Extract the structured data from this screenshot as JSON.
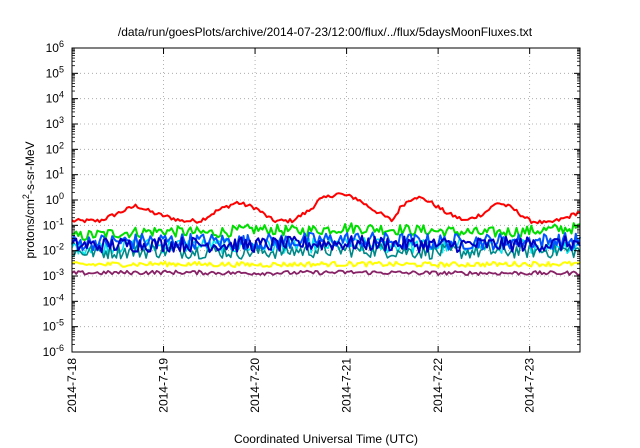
{
  "chart_data": {
    "type": "line",
    "title": "/data/run/goesPlots/archive/2014-07-23/12:00/flux/../flux/5daysMoonFluxes.txt",
    "xlabel": "Coordinated Universal Time (UTC)",
    "ylabel": {
      "pre": "protons/cm",
      "sup": "2",
      "post": "-s-sr-MeV"
    },
    "yscale": "log",
    "ylim_exponents": [
      -6,
      6
    ],
    "y_ticks": [
      {
        "base": "10",
        "exp": "6"
      },
      {
        "base": "10",
        "exp": "5"
      },
      {
        "base": "10",
        "exp": "4"
      },
      {
        "base": "10",
        "exp": "3"
      },
      {
        "base": "10",
        "exp": "2"
      },
      {
        "base": "10",
        "exp": "1"
      },
      {
        "base": "10",
        "exp": "0"
      },
      {
        "base": "10",
        "exp": "-1"
      },
      {
        "base": "10",
        "exp": "-2"
      },
      {
        "base": "10",
        "exp": "-3"
      },
      {
        "base": "10",
        "exp": "-4"
      },
      {
        "base": "10",
        "exp": "-5"
      },
      {
        "base": "10",
        "exp": "-6"
      }
    ],
    "x_ticks": [
      "2014-7-18",
      "2014-7-19",
      "2014-7-20",
      "2014-7-21",
      "2014-7-22",
      "2014-7-23"
    ],
    "x_range_days": [
      0,
      5.55
    ],
    "grid": true,
    "series": [
      {
        "color": "#ff0000",
        "x": [
          0,
          0.3,
          0.5,
          0.7,
          0.9,
          1.2,
          1.4,
          1.6,
          1.8,
          2.0,
          2.2,
          2.4,
          2.6,
          2.7,
          2.9,
          3.1,
          3.3,
          3.5,
          3.6,
          3.75,
          3.9,
          4.1,
          4.3,
          4.5,
          4.65,
          4.8,
          5.0,
          5.2,
          5.4,
          5.55
        ],
        "y": [
          0.15,
          0.15,
          0.3,
          0.6,
          0.3,
          0.15,
          0.15,
          0.4,
          0.8,
          0.5,
          0.15,
          0.15,
          0.4,
          1.0,
          1.8,
          1.2,
          0.4,
          0.15,
          0.6,
          1.4,
          0.9,
          0.3,
          0.15,
          0.3,
          0.8,
          0.5,
          0.15,
          0.12,
          0.2,
          0.35
        ]
      },
      {
        "color": "#00dd00",
        "x": [
          0,
          0.5,
          1.0,
          1.5,
          2.0,
          2.5,
          3.0,
          3.5,
          4.0,
          4.5,
          5.0,
          5.55
        ],
        "y": [
          0.035,
          0.05,
          0.06,
          0.05,
          0.07,
          0.06,
          0.08,
          0.07,
          0.06,
          0.05,
          0.06,
          0.08
        ]
      },
      {
        "color": "#00e6ee",
        "x": [
          0,
          1,
          2,
          3,
          4,
          5,
          5.55
        ],
        "y": [
          0.014,
          0.016,
          0.015,
          0.017,
          0.014,
          0.016,
          0.015
        ]
      },
      {
        "color": "#008888",
        "x": [
          0,
          1,
          2,
          3,
          4,
          5,
          5.55
        ],
        "y": [
          0.009,
          0.01,
          0.009,
          0.011,
          0.009,
          0.01,
          0.01
        ]
      },
      {
        "color": "#0055ff",
        "x": [
          0,
          1,
          2,
          3,
          4,
          5,
          5.55
        ],
        "y": [
          0.02,
          0.025,
          0.022,
          0.028,
          0.022,
          0.024,
          0.025
        ]
      },
      {
        "color": "#0000c0",
        "x": [
          0,
          1,
          2,
          3,
          4,
          5,
          5.55
        ],
        "y": [
          0.016,
          0.018,
          0.017,
          0.02,
          0.017,
          0.018,
          0.019
        ]
      },
      {
        "color": "#ffff00",
        "x": [
          0,
          1,
          2,
          3,
          4,
          5,
          5.55
        ],
        "y": [
          0.0028,
          0.003,
          0.0028,
          0.003,
          0.0028,
          0.003,
          0.003
        ]
      },
      {
        "color": "#882266",
        "x": [
          0,
          1,
          2,
          3,
          4,
          5,
          5.55
        ],
        "y": [
          0.0013,
          0.0014,
          0.0013,
          0.0014,
          0.0013,
          0.0013,
          0.0013
        ]
      }
    ]
  }
}
